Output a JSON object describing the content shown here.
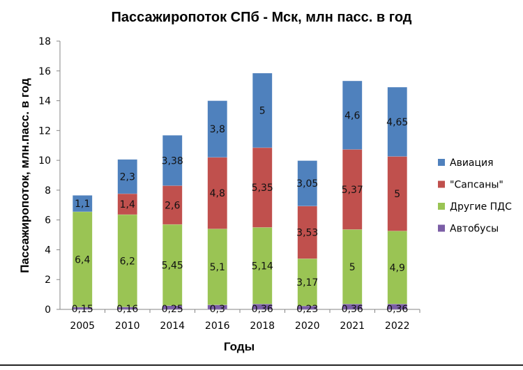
{
  "chart_data": {
    "type": "bar",
    "stacked": true,
    "title": "Пассажиропоток СПб - Мск, млн пасс. в год",
    "xlabel": "Годы",
    "ylabel": "Пассажиропоток,  млн.пасс. в год",
    "ylim": [
      0,
      18
    ],
    "yticks": [
      0,
      2,
      4,
      6,
      8,
      10,
      12,
      14,
      16,
      18
    ],
    "grid": false,
    "legend_position": "right",
    "categories": [
      "2005",
      "2010",
      "2014",
      "2016",
      "2018",
      "2020",
      "2021",
      "2022"
    ],
    "series": [
      {
        "name": "Автобусы",
        "color": "#7b5ea6",
        "values": [
          0.15,
          0.16,
          0.25,
          0.3,
          0.36,
          0.23,
          0.36,
          0.36
        ],
        "labels": [
          "0,15",
          "0,16",
          "0,25",
          "0,3",
          "0,36",
          "0,23",
          "0,36",
          "0,36"
        ]
      },
      {
        "name": "Другие ПДС",
        "color": "#9ac454",
        "values": [
          6.4,
          6.2,
          5.45,
          5.1,
          5.14,
          3.17,
          5,
          4.9
        ],
        "labels": [
          "6,4",
          "6,2",
          "5,45",
          "5,1",
          "5,14",
          "3,17",
          "5",
          "4,9"
        ]
      },
      {
        "name": "\"Сапсаны\"",
        "color": "#c0504d",
        "values": [
          0,
          1.4,
          2.6,
          4.8,
          5.35,
          3.53,
          5.37,
          5
        ],
        "labels": [
          "",
          "1,4",
          "2,6",
          "4,8",
          "5,35",
          "3,53",
          "5,37",
          "5"
        ]
      },
      {
        "name": "Авиация",
        "color": "#4f81bd",
        "values": [
          1.1,
          2.3,
          3.38,
          3.8,
          5,
          3.05,
          4.6,
          4.65
        ],
        "labels": [
          "1,1",
          "2,3",
          "3,38",
          "3,8",
          "5",
          "3,05",
          "4,6",
          "4,65"
        ]
      }
    ],
    "legend_order": [
      "Авиация",
      "\"Сапсаны\"",
      "Другие ПДС",
      "Автобусы"
    ]
  }
}
